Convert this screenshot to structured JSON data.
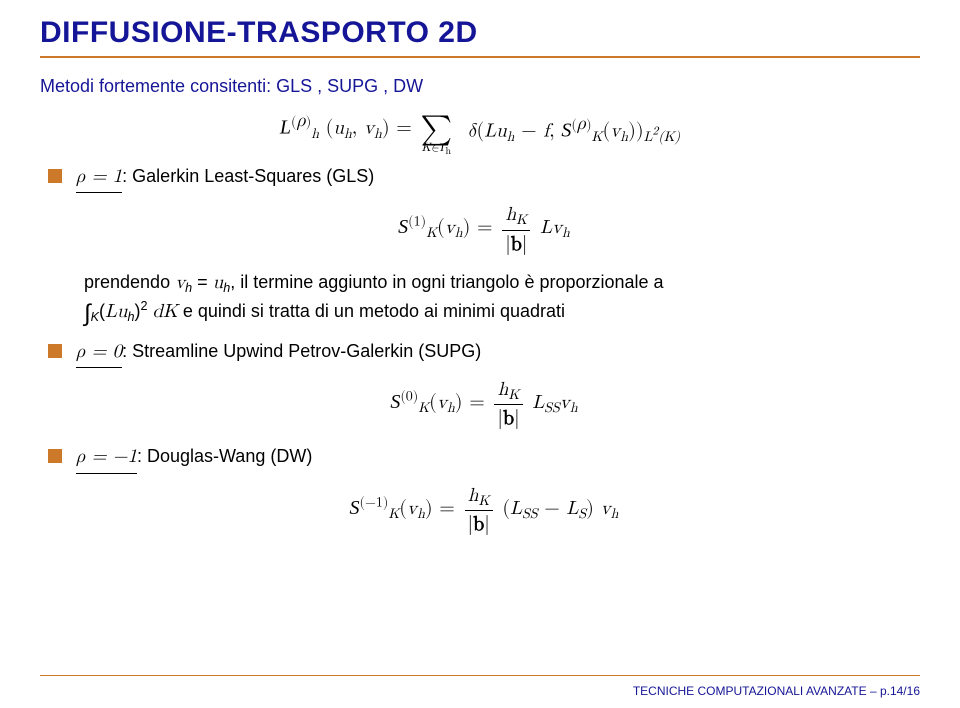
{
  "colors": {
    "title": "#151597",
    "rule": "#cc7a29",
    "subtitle": "#151597",
    "bullet_square": "#cc7a29",
    "footer_line": "#cc7a29",
    "footer_text": "#151597",
    "text": "#000000"
  },
  "title": "DIFFUSIONE-TRASPORTO 2D",
  "subtitle": "Metodi fortemente consitenti: GLS , SUPG , DW",
  "bullet1": {
    "rho_label": "ρ = 1",
    "desc": ": Galerkin Least-Squares (GLS)"
  },
  "nested1_a": "prendendo ",
  "nested1_b": ", il termine aggiunto in ogni triangolo è proporzionale a",
  "nested1_c": " e quindi si tratta di un metodo ai minimi quadrati",
  "bullet2": {
    "rho_label": "ρ = 0",
    "desc": ": Streamline Upwind Petrov-Galerkin (SUPG)"
  },
  "bullet3": {
    "rho_label": "ρ = −1",
    "desc": ": Douglas-Wang (DW)"
  },
  "footer": "TECNICHE COMPUTAZIONALI AVANZATE – p.14/16"
}
